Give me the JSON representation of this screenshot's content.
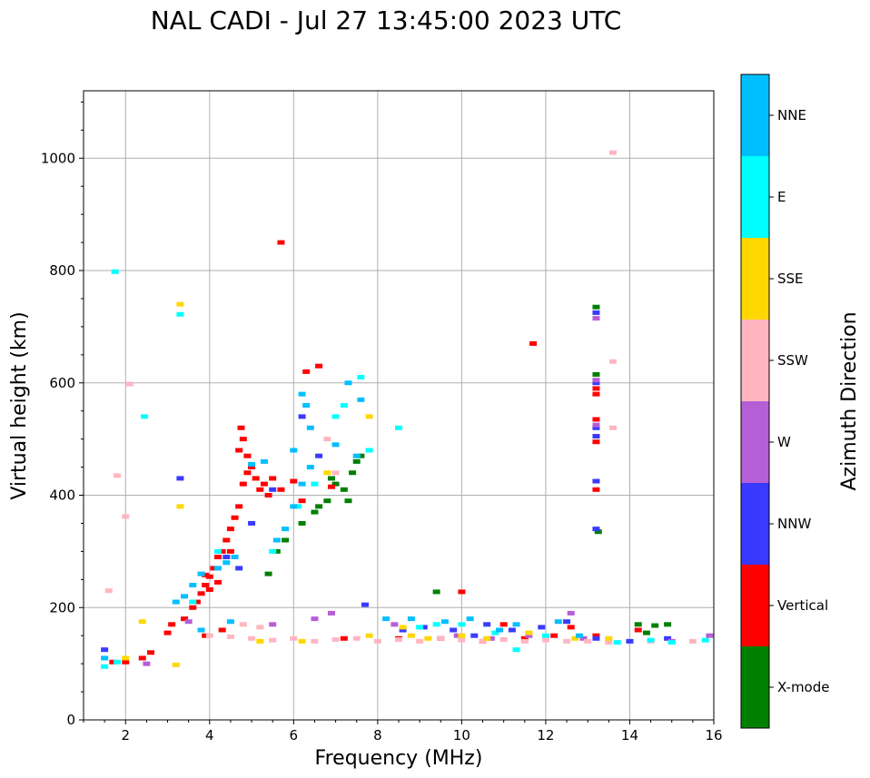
{
  "chart_data": {
    "type": "scatter",
    "title": "NAL CADI - Jul 27 13:45:00 2023 UTC",
    "xlabel": "Frequency (MHz)",
    "ylabel": "Virtual height (km)",
    "xlim": [
      1,
      16
    ],
    "ylim": [
      0,
      1120
    ],
    "grid": true,
    "x_major_ticks": [
      2,
      4,
      6,
      8,
      10,
      12,
      14,
      16
    ],
    "y_major_ticks": [
      0,
      200,
      400,
      600,
      800,
      1000
    ],
    "colorbar": {
      "label": "Azimuth Direction",
      "categories": [
        {
          "name": "X-mode",
          "color": "#008000"
        },
        {
          "name": "Vertical",
          "color": "#ff0000"
        },
        {
          "name": "NNW",
          "color": "#3a3aff"
        },
        {
          "name": "W",
          "color": "#b65ed6"
        },
        {
          "name": "SSW",
          "color": "#ffb6c1"
        },
        {
          "name": "SSE",
          "color": "#ffd700"
        },
        {
          "name": "E",
          "color": "#00ffff"
        },
        {
          "name": "NNE",
          "color": "#00bfff"
        }
      ]
    },
    "series": [
      {
        "name": "X-mode",
        "color": "#008000",
        "points": [
          [
            5.6,
            300
          ],
          [
            5.4,
            260
          ],
          [
            5.8,
            320
          ],
          [
            6.2,
            350
          ],
          [
            6.5,
            370
          ],
          [
            6.8,
            390
          ],
          [
            7.0,
            420
          ],
          [
            7.2,
            410
          ],
          [
            7.4,
            440
          ],
          [
            7.6,
            470
          ],
          [
            7.5,
            460
          ],
          [
            6.6,
            380
          ],
          [
            13.2,
            735
          ],
          [
            13.2,
            615
          ],
          [
            13.25,
            335
          ],
          [
            14.2,
            170
          ],
          [
            14.6,
            168
          ],
          [
            14.4,
            155
          ],
          [
            14.9,
            170
          ],
          [
            9.4,
            228
          ],
          [
            6.9,
            430
          ],
          [
            7.3,
            390
          ]
        ]
      },
      {
        "name": "Vertical",
        "color": "#ff0000",
        "points": [
          [
            1.7,
            103
          ],
          [
            2.0,
            103
          ],
          [
            2.4,
            110
          ],
          [
            2.6,
            120
          ],
          [
            3.0,
            155
          ],
          [
            3.1,
            170
          ],
          [
            3.4,
            180
          ],
          [
            3.6,
            200
          ],
          [
            3.7,
            210
          ],
          [
            3.8,
            225
          ],
          [
            3.9,
            240
          ],
          [
            4.0,
            255
          ],
          [
            4.1,
            270
          ],
          [
            4.2,
            290
          ],
          [
            4.3,
            300
          ],
          [
            4.4,
            320
          ],
          [
            4.5,
            340
          ],
          [
            4.6,
            360
          ],
          [
            4.7,
            380
          ],
          [
            4.8,
            420
          ],
          [
            4.9,
            440
          ],
          [
            5.0,
            450
          ],
          [
            5.1,
            430
          ],
          [
            5.2,
            410
          ],
          [
            5.3,
            420
          ],
          [
            5.4,
            400
          ],
          [
            5.5,
            430
          ],
          [
            5.7,
            410
          ],
          [
            4.7,
            480
          ],
          [
            4.8,
            500
          ],
          [
            4.9,
            470
          ],
          [
            4.75,
            520
          ],
          [
            6.3,
            620
          ],
          [
            6.6,
            630
          ],
          [
            6.0,
            425
          ],
          [
            6.9,
            415
          ],
          [
            6.2,
            390
          ],
          [
            4.0,
            232
          ],
          [
            4.2,
            245
          ],
          [
            3.9,
            258
          ],
          [
            4.5,
            300
          ],
          [
            5.7,
            850
          ],
          [
            11.7,
            670
          ],
          [
            10.0,
            228
          ],
          [
            13.2,
            590
          ],
          [
            13.2,
            580
          ],
          [
            13.2,
            535
          ],
          [
            13.2,
            495
          ],
          [
            13.2,
            410
          ],
          [
            13.2,
            150
          ],
          [
            12.6,
            165
          ],
          [
            12.2,
            150
          ],
          [
            11.0,
            170
          ],
          [
            14.2,
            160
          ],
          [
            9.5,
            145
          ],
          [
            8.5,
            145
          ],
          [
            7.2,
            145
          ],
          [
            3.9,
            150
          ],
          [
            4.3,
            160
          ],
          [
            10.5,
            140
          ],
          [
            11.5,
            145
          ]
        ]
      },
      {
        "name": "NNW",
        "color": "#3a3aff",
        "points": [
          [
            1.5,
            125
          ],
          [
            3.3,
            430
          ],
          [
            13.2,
            725
          ],
          [
            13.2,
            600
          ],
          [
            13.2,
            520
          ],
          [
            13.2,
            505
          ],
          [
            13.2,
            425
          ],
          [
            13.2,
            340
          ],
          [
            13.2,
            145
          ],
          [
            12.5,
            175
          ],
          [
            11.9,
            165
          ],
          [
            10.6,
            170
          ],
          [
            9.8,
            160
          ],
          [
            9.1,
            165
          ],
          [
            8.6,
            160
          ],
          [
            14.0,
            140
          ],
          [
            14.9,
            145
          ],
          [
            4.4,
            290
          ],
          [
            4.7,
            270
          ],
          [
            5.0,
            350
          ],
          [
            5.5,
            410
          ],
          [
            6.2,
            540
          ],
          [
            6.6,
            470
          ],
          [
            7.7,
            205
          ],
          [
            10.3,
            150
          ],
          [
            11.2,
            160
          ]
        ]
      },
      {
        "name": "W",
        "color": "#b65ed6",
        "points": [
          [
            13.2,
            715
          ],
          [
            13.2,
            605
          ],
          [
            13.2,
            525
          ],
          [
            12.9,
            145
          ],
          [
            15.0,
            140
          ],
          [
            15.9,
            150
          ],
          [
            10.7,
            145
          ],
          [
            9.9,
            150
          ],
          [
            8.4,
            170
          ],
          [
            6.5,
            180
          ],
          [
            5.5,
            170
          ],
          [
            3.5,
            175
          ],
          [
            2.5,
            100
          ],
          [
            6.9,
            190
          ],
          [
            11.6,
            150
          ],
          [
            12.6,
            190
          ]
        ]
      },
      {
        "name": "SSW",
        "color": "#ffb6c1",
        "points": [
          [
            13.6,
            1010
          ],
          [
            13.6,
            638
          ],
          [
            13.6,
            520
          ],
          [
            1.8,
            435
          ],
          [
            2.0,
            362
          ],
          [
            1.6,
            230
          ],
          [
            2.1,
            598
          ],
          [
            4.0,
            150
          ],
          [
            4.5,
            148
          ],
          [
            5.0,
            145
          ],
          [
            5.5,
            142
          ],
          [
            6.0,
            145
          ],
          [
            6.5,
            140
          ],
          [
            7.0,
            143
          ],
          [
            7.5,
            145
          ],
          [
            8.0,
            140
          ],
          [
            8.5,
            143
          ],
          [
            9.0,
            140
          ],
          [
            9.5,
            145
          ],
          [
            10.0,
            142
          ],
          [
            10.5,
            140
          ],
          [
            11.0,
            143
          ],
          [
            11.5,
            140
          ],
          [
            12.0,
            142
          ],
          [
            12.5,
            140
          ],
          [
            13.0,
            140
          ],
          [
            13.5,
            138
          ],
          [
            14.5,
            140
          ],
          [
            15.5,
            140
          ],
          [
            4.8,
            170
          ],
          [
            5.2,
            165
          ],
          [
            6.8,
            500
          ],
          [
            7.0,
            440
          ]
        ]
      },
      {
        "name": "SSE",
        "color": "#ffd700",
        "points": [
          [
            3.3,
            740
          ],
          [
            3.3,
            380
          ],
          [
            2.4,
            175
          ],
          [
            2.0,
            110
          ],
          [
            8.6,
            165
          ],
          [
            8.8,
            150
          ],
          [
            9.2,
            145
          ],
          [
            10.0,
            150
          ],
          [
            10.6,
            145
          ],
          [
            11.6,
            155
          ],
          [
            12.7,
            145
          ],
          [
            13.5,
            145
          ],
          [
            6.2,
            140
          ],
          [
            7.8,
            150
          ],
          [
            6.8,
            440
          ],
          [
            7.8,
            540
          ],
          [
            3.2,
            98
          ],
          [
            5.2,
            140
          ]
        ]
      },
      {
        "name": "E",
        "color": "#00ffff",
        "points": [
          [
            1.5,
            95
          ],
          [
            1.8,
            103
          ],
          [
            3.3,
            722
          ],
          [
            2.45,
            540
          ],
          [
            1.75,
            798
          ],
          [
            3.6,
            210
          ],
          [
            5.5,
            300
          ],
          [
            6.1,
            380
          ],
          [
            6.5,
            420
          ],
          [
            7.0,
            540
          ],
          [
            7.2,
            560
          ],
          [
            7.8,
            480
          ],
          [
            8.5,
            520
          ],
          [
            9.0,
            165
          ],
          [
            9.4,
            170
          ],
          [
            10.0,
            170
          ],
          [
            10.8,
            155
          ],
          [
            11.3,
            125
          ],
          [
            12.0,
            150
          ],
          [
            13.7,
            138
          ],
          [
            14.5,
            142
          ],
          [
            15.0,
            138
          ],
          [
            15.8,
            142
          ],
          [
            7.6,
            610
          ],
          [
            4.2,
            300
          ]
        ]
      },
      {
        "name": "NNE",
        "color": "#00bfff",
        "points": [
          [
            1.5,
            110
          ],
          [
            3.2,
            210
          ],
          [
            3.4,
            220
          ],
          [
            3.6,
            240
          ],
          [
            3.8,
            260
          ],
          [
            4.2,
            270
          ],
          [
            4.4,
            280
          ],
          [
            4.6,
            290
          ],
          [
            5.6,
            320
          ],
          [
            5.8,
            340
          ],
          [
            6.0,
            380
          ],
          [
            6.2,
            420
          ],
          [
            6.4,
            450
          ],
          [
            6.2,
            580
          ],
          [
            6.3,
            560
          ],
          [
            6.4,
            520
          ],
          [
            6.0,
            480
          ],
          [
            7.0,
            490
          ],
          [
            7.5,
            470
          ],
          [
            8.2,
            180
          ],
          [
            8.8,
            180
          ],
          [
            9.6,
            175
          ],
          [
            10.2,
            180
          ],
          [
            10.9,
            160
          ],
          [
            11.3,
            170
          ],
          [
            12.3,
            175
          ],
          [
            12.8,
            150
          ],
          [
            7.6,
            570
          ],
          [
            7.3,
            600
          ],
          [
            3.8,
            160
          ],
          [
            4.5,
            175
          ],
          [
            5.0,
            455
          ],
          [
            5.3,
            460
          ]
        ]
      }
    ]
  }
}
